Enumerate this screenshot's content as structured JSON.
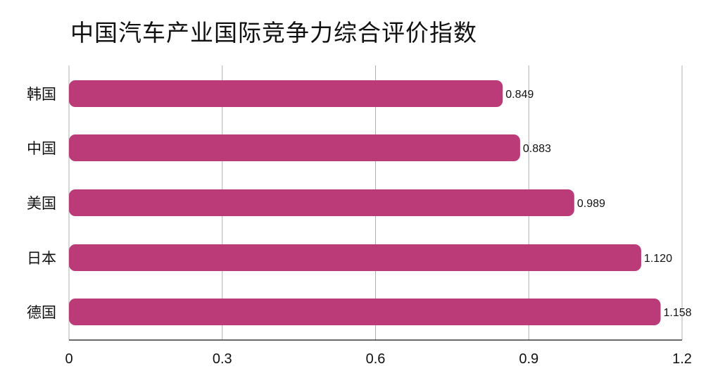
{
  "chart_data": {
    "type": "bar",
    "orientation": "horizontal",
    "title": "中国汽车产业国际竞争力综合评价指数",
    "categories": [
      "韩国",
      "中国",
      "美国",
      "日本",
      "德国"
    ],
    "values": [
      0.849,
      0.883,
      0.989,
      1.12,
      1.158
    ],
    "value_labels": [
      "0.849",
      "0.883",
      "0.989",
      "1.120",
      "1.158"
    ],
    "xlim": [
      0,
      1.2
    ],
    "xticks": [
      0,
      0.3,
      0.6,
      0.9,
      1.2
    ],
    "xtick_labels": [
      "0",
      "0.3",
      "0.6",
      "0.9",
      "1.2"
    ],
    "grid": true,
    "legend": false,
    "colors": {
      "bar": "#bb3a78",
      "grid": "#b0b0b0",
      "axis": "#111111"
    }
  }
}
